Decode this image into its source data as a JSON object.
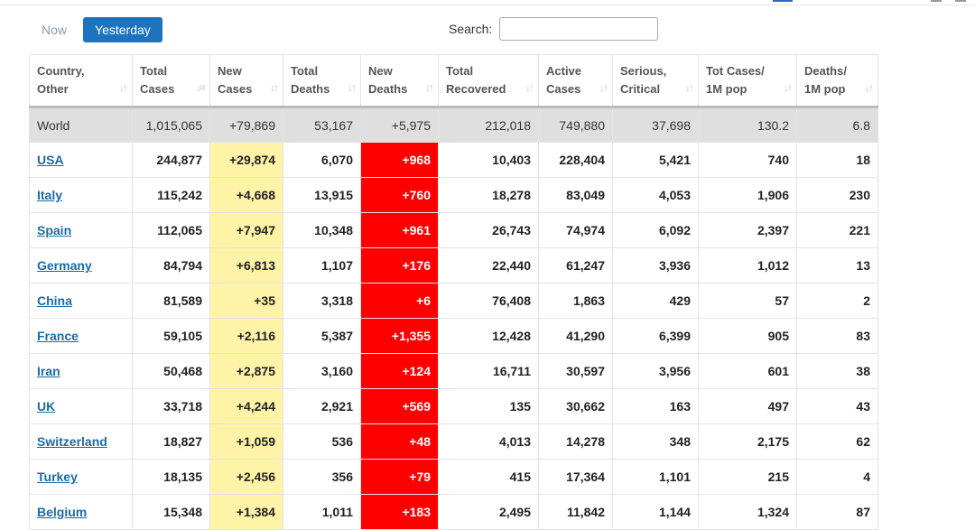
{
  "tabs": {
    "now": "Now",
    "yesterday": "Yesterday"
  },
  "search": {
    "label": "Search:",
    "value": ""
  },
  "headers": [
    {
      "line1": "Country,",
      "line2": "Other",
      "sort": "both"
    },
    {
      "line1": "Total",
      "line2": "Cases",
      "sort": "desc"
    },
    {
      "line1": "New",
      "line2": "Cases",
      "sort": "both"
    },
    {
      "line1": "Total",
      "line2": "Deaths",
      "sort": "both"
    },
    {
      "line1": "New",
      "line2": "Deaths",
      "sort": "both"
    },
    {
      "line1": "Total",
      "line2": "Recovered",
      "sort": "both"
    },
    {
      "line1": "Active",
      "line2": "Cases",
      "sort": "both"
    },
    {
      "line1": "Serious,",
      "line2": "Critical",
      "sort": "both"
    },
    {
      "line1": "Tot Cases/",
      "line2": "1M pop",
      "sort": "both"
    },
    {
      "line1": "Deaths/",
      "line2": "1M pop",
      "sort": "both"
    }
  ],
  "world": [
    "World",
    "1,015,065",
    "+79,869",
    "53,167",
    "+5,975",
    "212,018",
    "749,880",
    "37,698",
    "130.2",
    "6.8"
  ],
  "rows": [
    [
      "USA",
      "244,877",
      "+29,874",
      "6,070",
      "+968",
      "10,403",
      "228,404",
      "5,421",
      "740",
      "18"
    ],
    [
      "Italy",
      "115,242",
      "+4,668",
      "13,915",
      "+760",
      "18,278",
      "83,049",
      "4,053",
      "1,906",
      "230"
    ],
    [
      "Spain",
      "112,065",
      "+7,947",
      "10,348",
      "+961",
      "26,743",
      "74,974",
      "6,092",
      "2,397",
      "221"
    ],
    [
      "Germany",
      "84,794",
      "+6,813",
      "1,107",
      "+176",
      "22,440",
      "61,247",
      "3,936",
      "1,012",
      "13"
    ],
    [
      "China",
      "81,589",
      "+35",
      "3,318",
      "+6",
      "76,408",
      "1,863",
      "429",
      "57",
      "2"
    ],
    [
      "France",
      "59,105",
      "+2,116",
      "5,387",
      "+1,355",
      "12,428",
      "41,290",
      "6,399",
      "905",
      "83"
    ],
    [
      "Iran",
      "50,468",
      "+2,875",
      "3,160",
      "+124",
      "16,711",
      "30,597",
      "3,956",
      "601",
      "38"
    ],
    [
      "UK",
      "33,718",
      "+4,244",
      "2,921",
      "+569",
      "135",
      "30,662",
      "163",
      "497",
      "43"
    ],
    [
      "Switzerland",
      "18,827",
      "+1,059",
      "536",
      "+48",
      "4,013",
      "14,278",
      "348",
      "2,175",
      "62"
    ],
    [
      "Turkey",
      "18,135",
      "+2,456",
      "356",
      "+79",
      "415",
      "17,364",
      "1,101",
      "215",
      "4"
    ],
    [
      "Belgium",
      "15,348",
      "+1,384",
      "1,011",
      "+183",
      "2,495",
      "11,842",
      "1,144",
      "1,324",
      "87"
    ]
  ],
  "colors": {
    "accent": "#1e73be",
    "new_cases_bg": "#fff3a8",
    "new_deaths_bg": "#ff0000",
    "world_bg": "#dfdfdf",
    "link": "#1a6ba8"
  }
}
